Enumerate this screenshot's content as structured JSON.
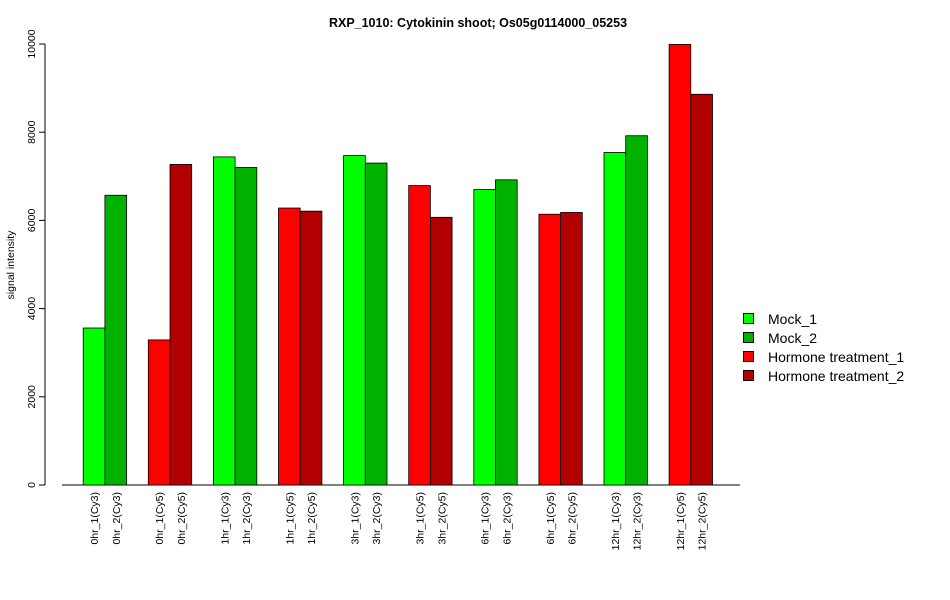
{
  "chart_data": {
    "type": "bar",
    "title": "RXP_1010: Cytokinin shoot; Os05g0114000_05253",
    "xlabel": "",
    "ylabel": "signal intensity",
    "ylim": [
      0,
      10000
    ],
    "yticks": [
      0,
      2000,
      4000,
      6000,
      8000,
      10000
    ],
    "grid": false,
    "legend_position": "right",
    "categories": [
      "0hr_1(Cy3)",
      "0hr_2(Cy3)",
      "0hr_1(Cy5)",
      "0hr_2(Cy5)",
      "1hr_1(Cy3)",
      "1hr_2(Cy3)",
      "1hr_1(Cy5)",
      "1hr_2(Cy5)",
      "3hr_1(Cy3)",
      "3hr_2(Cy3)",
      "3hr_1(Cy5)",
      "3hr_2(Cy5)",
      "6hr_1(Cy3)",
      "6hr_2(Cy3)",
      "6hr_1(Cy5)",
      "6hr_2(Cy5)",
      "12hr_1(Cy3)",
      "12hr_2(Cy3)",
      "12hr_1(Cy5)",
      "12hr_2(Cy5)"
    ],
    "values": [
      3560,
      6570,
      3290,
      7270,
      7440,
      7200,
      6280,
      6210,
      7470,
      7300,
      6790,
      6070,
      6700,
      6920,
      6140,
      6180,
      7540,
      7920,
      9990,
      8860
    ],
    "bar_series": [
      "Mock_1",
      "Mock_2",
      "Hormone treatment_1",
      "Hormone treatment_2",
      "Mock_1",
      "Mock_2",
      "Hormone treatment_1",
      "Hormone treatment_2",
      "Mock_1",
      "Mock_2",
      "Hormone treatment_1",
      "Hormone treatment_2",
      "Mock_1",
      "Mock_2",
      "Hormone treatment_1",
      "Hormone treatment_2",
      "Mock_1",
      "Mock_2",
      "Hormone treatment_1",
      "Hormone treatment_2"
    ],
    "series": [
      {
        "name": "Mock_1",
        "color": "#00ff00"
      },
      {
        "name": "Mock_2",
        "color": "#00b200"
      },
      {
        "name": "Hormone treatment_1",
        "color": "#ff0000"
      },
      {
        "name": "Hormone treatment_2",
        "color": "#b20000"
      }
    ]
  }
}
